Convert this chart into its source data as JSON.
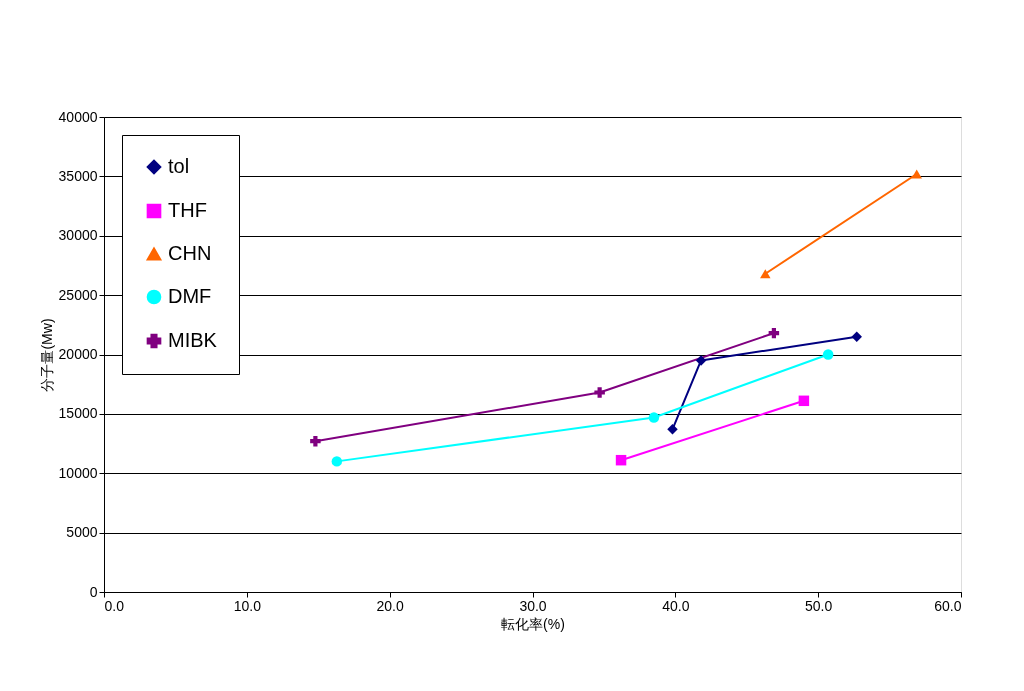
{
  "chart_data": {
    "type": "line",
    "xlabel": "転化率(%)",
    "ylabel": "分子量(Mw)",
    "xlim": [
      0,
      60
    ],
    "xticks": [
      {
        "value": 0,
        "label": "0.0"
      },
      {
        "value": 10,
        "label": "10.0"
      },
      {
        "value": 20,
        "label": "20.0"
      },
      {
        "value": 30,
        "label": "30.0"
      },
      {
        "value": 40,
        "label": "40.0"
      },
      {
        "value": 50,
        "label": "50.0"
      },
      {
        "value": 60,
        "label": "60.0"
      }
    ],
    "ylim": [
      0,
      40000
    ],
    "yticks": [
      0,
      5000,
      10000,
      15000,
      20000,
      25000,
      30000,
      35000,
      40000
    ],
    "grid": "y",
    "legend": "top left",
    "series": [
      {
        "name": "tol",
        "color": "#000080",
        "marker": "diamond",
        "x": [
          39.8,
          41.8,
          52.7
        ],
        "values": [
          13700,
          19500,
          21500
        ]
      },
      {
        "name": "THF",
        "color": "#ff00ff",
        "marker": "square",
        "x": [
          36.2,
          49.0
        ],
        "values": [
          11100,
          16100
        ]
      },
      {
        "name": "CHN",
        "color": "#ff6600",
        "marker": "triangle",
        "x": [
          46.3,
          56.9
        ],
        "values": [
          26800,
          35200
        ]
      },
      {
        "name": "DMF",
        "color": "#00ffff",
        "marker": "circle",
        "x": [
          16.3,
          38.5,
          50.7
        ],
        "values": [
          11000,
          14700,
          20000
        ]
      },
      {
        "name": "MIBK",
        "color": "#800080",
        "marker": "cross",
        "x": [
          14.8,
          34.7,
          46.9
        ],
        "values": [
          12700,
          16800,
          21800
        ]
      }
    ]
  }
}
